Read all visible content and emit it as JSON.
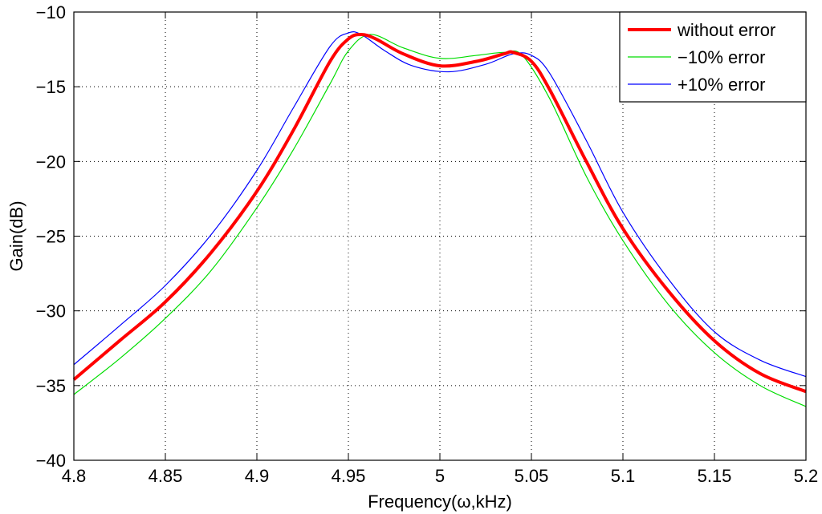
{
  "chart_data": {
    "type": "line",
    "xlabel": "Frequency(ω,kHz)",
    "ylabel": "Gain(dB)",
    "xlim": [
      4.8,
      5.2
    ],
    "ylim": [
      -40,
      -10
    ],
    "xticks": [
      4.8,
      4.85,
      4.9,
      4.95,
      5,
      5.05,
      5.1,
      5.15,
      5.2
    ],
    "yticks": [
      -10,
      -15,
      -20,
      -25,
      -30,
      -35,
      -40
    ],
    "xtick_labels": [
      "4.8",
      "4.85",
      "4.9",
      "4.95",
      "5",
      "5.05",
      "5.1",
      "5.15",
      "5.2"
    ],
    "ytick_labels": [
      "−10",
      "−15",
      "−20",
      "−25",
      "−30",
      "−35",
      "−40"
    ],
    "grid": true,
    "legend_position": "top-right",
    "series": [
      {
        "name": "without error",
        "color": "#ff0000",
        "width": "thick",
        "x": [
          4.8,
          4.825,
          4.85,
          4.875,
          4.9,
          4.92,
          4.94,
          4.95,
          4.957,
          4.965,
          4.98,
          5.0,
          5.02,
          5.035,
          5.04,
          5.05,
          5.06,
          5.08,
          5.1,
          5.125,
          5.15,
          5.175,
          5.2
        ],
        "values": [
          -34.6,
          -32.0,
          -29.4,
          -26.1,
          -22.0,
          -17.9,
          -13.3,
          -11.8,
          -11.5,
          -11.8,
          -12.8,
          -13.6,
          -13.3,
          -12.8,
          -12.7,
          -13.3,
          -15.2,
          -20.0,
          -24.5,
          -28.7,
          -32.0,
          -34.2,
          -35.4
        ]
      },
      {
        "name": "−10% error",
        "color": "#00dd00",
        "width": "thin",
        "x": [
          4.8,
          4.825,
          4.85,
          4.875,
          4.9,
          4.92,
          4.94,
          4.95,
          4.962,
          4.98,
          5.0,
          5.02,
          5.035,
          5.045,
          5.06,
          5.08,
          5.1,
          5.125,
          5.15,
          5.175,
          5.2
        ],
        "values": [
          -35.6,
          -33.2,
          -30.5,
          -27.3,
          -23.1,
          -19.2,
          -14.8,
          -12.6,
          -11.5,
          -12.4,
          -13.1,
          -12.9,
          -12.7,
          -12.9,
          -15.8,
          -21.0,
          -25.3,
          -29.6,
          -32.8,
          -35.0,
          -36.4
        ]
      },
      {
        "name": "+10% error",
        "color": "#0000ff",
        "width": "thin",
        "x": [
          4.8,
          4.825,
          4.85,
          4.875,
          4.9,
          4.92,
          4.94,
          4.95,
          4.957,
          4.97,
          4.985,
          5.005,
          5.025,
          5.04,
          5.05,
          5.06,
          5.08,
          5.1,
          5.125,
          5.15,
          5.175,
          5.2
        ],
        "values": [
          -33.6,
          -31.0,
          -28.3,
          -24.9,
          -20.6,
          -16.4,
          -12.3,
          -11.4,
          -11.5,
          -12.6,
          -13.6,
          -14.0,
          -13.5,
          -12.8,
          -12.9,
          -14.1,
          -18.6,
          -23.4,
          -27.9,
          -31.4,
          -33.3,
          -34.4
        ]
      }
    ]
  }
}
